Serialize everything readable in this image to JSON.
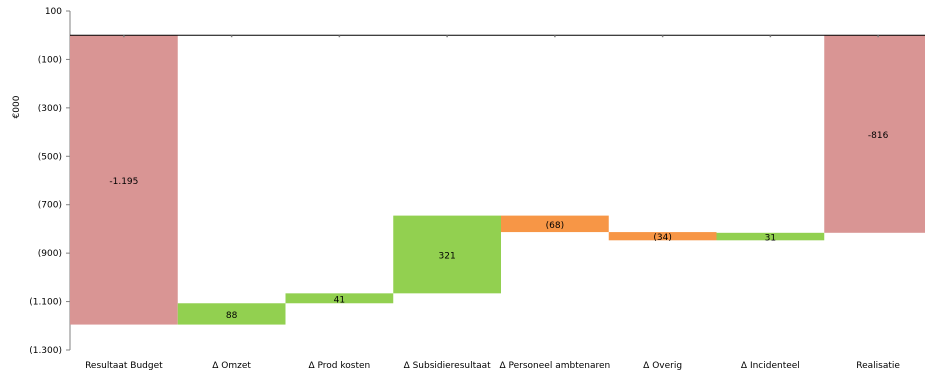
{
  "chart_data": {
    "type": "waterfall",
    "ylabel": "€000",
    "ylim": [
      -1300,
      100
    ],
    "yticks": [
      {
        "value": 100,
        "label": "100"
      },
      {
        "value": -100,
        "label": "(100)"
      },
      {
        "value": -300,
        "label": "(300)"
      },
      {
        "value": -500,
        "label": "(500)"
      },
      {
        "value": -700,
        "label": "(700)"
      },
      {
        "value": -900,
        "label": "(900)"
      },
      {
        "value": -1100,
        "label": "(1.100)"
      },
      {
        "value": -1300,
        "label": "(1.300)"
      }
    ],
    "categories": [
      "Resultaat Budget",
      "Δ Omzet",
      "Δ Prod kosten",
      "Δ Subsidieresultaat",
      "Δ Personeel ambtenaren",
      "Δ Overig",
      "Δ Incidenteel",
      "Realisatie"
    ],
    "bars": [
      {
        "kind": "total",
        "start": 0,
        "end": -1195,
        "value": -1195,
        "label": "-1.195",
        "color": "#d99594"
      },
      {
        "kind": "increase",
        "start": -1195,
        "end": -1107,
        "value": 88,
        "label": "88",
        "color": "#92d050"
      },
      {
        "kind": "increase",
        "start": -1107,
        "end": -1066,
        "value": 41,
        "label": "41",
        "color": "#92d050"
      },
      {
        "kind": "increase",
        "start": -1066,
        "end": -745,
        "value": 321,
        "label": "321",
        "color": "#92d050"
      },
      {
        "kind": "decrease",
        "start": -745,
        "end": -813,
        "value": -68,
        "label": "(68)",
        "color": "#f79646"
      },
      {
        "kind": "decrease",
        "start": -813,
        "end": -847,
        "value": -34,
        "label": "(34)",
        "color": "#f79646"
      },
      {
        "kind": "increase",
        "start": -847,
        "end": -816,
        "value": 31,
        "label": "31",
        "color": "#92d050"
      },
      {
        "kind": "total",
        "start": 0,
        "end": -816,
        "value": -816,
        "label": "-816",
        "color": "#d99594"
      }
    ],
    "grid": false,
    "legend": "none"
  }
}
